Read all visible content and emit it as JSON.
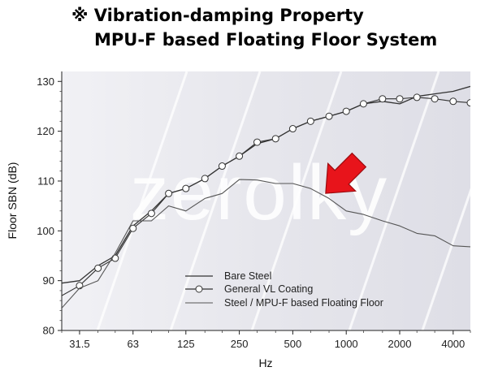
{
  "header": {
    "title_line1": "※ Vibration-damping Property",
    "title_line2": "MPU-F based Floating Floor System"
  },
  "watermark": "zerolky",
  "colors": {
    "plot_bg": "#e8e8ee",
    "series_line": "#333333",
    "series_line_light": "#555555",
    "arrow_fill": "#e8141b",
    "arrow_stroke": "#9b0a0e"
  },
  "chart_data": {
    "type": "line",
    "title": "",
    "xlabel": "Hz",
    "ylabel": "Floor SBN (dB)",
    "x_scale": "log",
    "xlim": [
      25,
      5000
    ],
    "ylim": [
      80,
      132
    ],
    "x_ticks": [
      31.5,
      63,
      125,
      250,
      500,
      1000,
      2000,
      4000
    ],
    "x_tick_labels": [
      "31.5",
      "63",
      "125",
      "250",
      "500",
      "1000",
      "2000",
      "4000"
    ],
    "y_ticks": [
      80,
      90,
      100,
      110,
      120,
      130
    ],
    "legend_position": "lower-left",
    "grid": false,
    "annotation": "red arrow pointing down-right at the Steel / MPU-F based Floating Floor curve near 800 Hz",
    "series": [
      {
        "name": "Bare Steel",
        "marker": "none",
        "x": [
          25,
          31.5,
          40,
          50,
          63,
          80,
          100,
          125,
          160,
          200,
          250,
          315,
          400,
          500,
          630,
          800,
          1000,
          1250,
          1600,
          2000,
          2500,
          3150,
          4000,
          5000
        ],
        "y": [
          89.5,
          90,
          93,
          95,
          101,
          104,
          107.5,
          108.5,
          110.5,
          113,
          115,
          117.5,
          118.5,
          120.5,
          122,
          123,
          124,
          125.5,
          126,
          125.5,
          127,
          127.5,
          128,
          129
        ]
      },
      {
        "name": "General VL Coating",
        "marker": "circle",
        "x": [
          25,
          31.5,
          40,
          50,
          63,
          80,
          100,
          125,
          160,
          200,
          250,
          315,
          400,
          500,
          630,
          800,
          1000,
          1250,
          1600,
          2000,
          2500,
          3150,
          4000,
          5000
        ],
        "y": [
          87,
          89,
          92.5,
          94.5,
          100.5,
          103.5,
          107.5,
          108.5,
          110.5,
          113,
          115,
          117.8,
          118.5,
          120.5,
          122,
          123,
          124,
          125.5,
          126.5,
          126.5,
          126.8,
          126.5,
          126,
          125.7
        ]
      },
      {
        "name": "Steel / MPU-F based Floating Floor",
        "marker": "none",
        "x": [
          25,
          31.5,
          40,
          50,
          63,
          80,
          100,
          125,
          160,
          200,
          250,
          315,
          400,
          500,
          630,
          800,
          1000,
          1250,
          1600,
          2000,
          2500,
          3150,
          4000,
          5000
        ],
        "y": [
          84.5,
          88.5,
          90,
          95.5,
          102,
          102,
          105,
          104,
          106.5,
          107.5,
          110.3,
          110.2,
          109.5,
          109.5,
          108.5,
          106.5,
          104,
          103.3,
          102,
          101,
          99.5,
          99,
          97,
          96.8
        ]
      }
    ]
  }
}
